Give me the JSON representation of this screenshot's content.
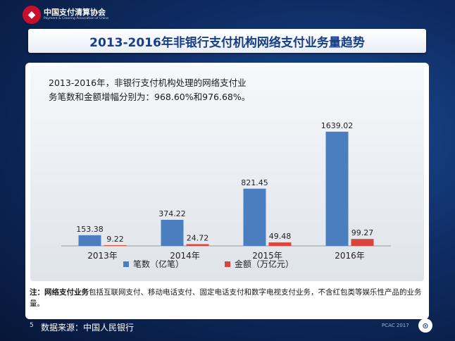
{
  "header": {
    "org_name": "中国支付清算协会",
    "org_name_en": "Payment & Clearing Association of China",
    "title": "2013-2016年非银行支付机构网络支付业务量趋势"
  },
  "summary": {
    "line1": "2013-2016年，非银行支付机构处理的网络支付业",
    "line2": "务笔数和金额增幅分别为：968.60%和976.68%。"
  },
  "chart_data": {
    "type": "bar",
    "categories": [
      "2013年",
      "2014年",
      "2015年",
      "2016年"
    ],
    "series": [
      {
        "name": "笔数（亿笔）",
        "values": [
          153.38,
          374.22,
          821.45,
          1639.02
        ],
        "color": "#4a7ebf"
      },
      {
        "name": "金额（万亿元）",
        "values": [
          9.22,
          24.72,
          49.48,
          99.27
        ],
        "color": "#d9453c"
      }
    ],
    "value_labels": [
      [
        "153.38",
        "374.22",
        "821.45",
        "1639.02"
      ],
      [
        "9.22",
        "24.72",
        "49.48",
        "99.27"
      ]
    ],
    "ylim": [
      0,
      1800
    ],
    "legend_position": "bottom",
    "grid": false
  },
  "note": {
    "prefix": "注：",
    "term": "网络支付业务",
    "text": "包括互联网支付、移动电话支付、固定电话支付和数字电视支付业务，不含红包类等娱乐性产品的业务量。"
  },
  "footer": {
    "page_number": "5",
    "source": "数据来源：中国人民银行",
    "code": "PCAC 2017"
  }
}
